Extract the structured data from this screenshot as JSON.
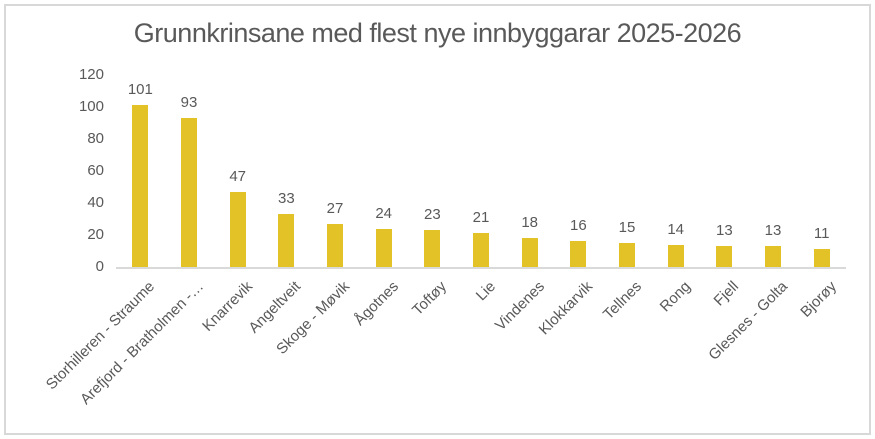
{
  "chart_data": {
    "type": "bar",
    "title": "Grunnkrinsane med flest nye innbyggarar 2025-2026",
    "categories": [
      "Storhilleren - Straume",
      "Arefjord - Bratholmen -…",
      "Knarrevik",
      "Angeltveit",
      "Skoge - Møvik",
      "Ågotnes",
      "Toftøy",
      "Lie",
      "Vindenes",
      "Klokkarvik",
      "Tellnes",
      "Rong",
      "Fjell",
      "Glesnes - Golta",
      "Bjorøy"
    ],
    "values": [
      101,
      93,
      47,
      33,
      27,
      24,
      23,
      21,
      18,
      16,
      15,
      14,
      13,
      13,
      11
    ],
    "data_labels_shown": true,
    "xlabel": "",
    "ylabel": "",
    "ylim": [
      0,
      120
    ],
    "yticks": [
      0,
      20,
      40,
      60,
      80,
      100,
      120
    ],
    "grid": "off",
    "legend": "none",
    "colors": {
      "bar": "#E2C226",
      "axis": "#D9D9D9",
      "text": "#595959",
      "frame_border": "#D8D8D8",
      "background": "#FFFFFF"
    }
  }
}
